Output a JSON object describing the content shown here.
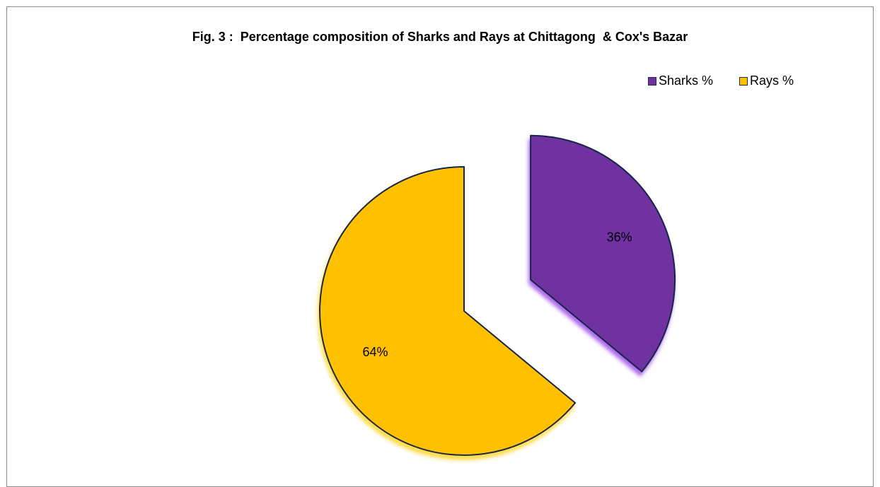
{
  "chart_data": {
    "type": "pie",
    "title": "Fig. 3 :  Percentage composition of Sharks and Rays at Chittagong  & Cox's Bazar",
    "legend_position": "top-right",
    "slices": [
      {
        "name": "Sharks %",
        "value": 36,
        "label": "36%",
        "color": "#7030a0",
        "exploded": true
      },
      {
        "name": "Rays %",
        "value": 64,
        "label": "64%",
        "color": "#ffc000",
        "exploded": false
      }
    ]
  }
}
